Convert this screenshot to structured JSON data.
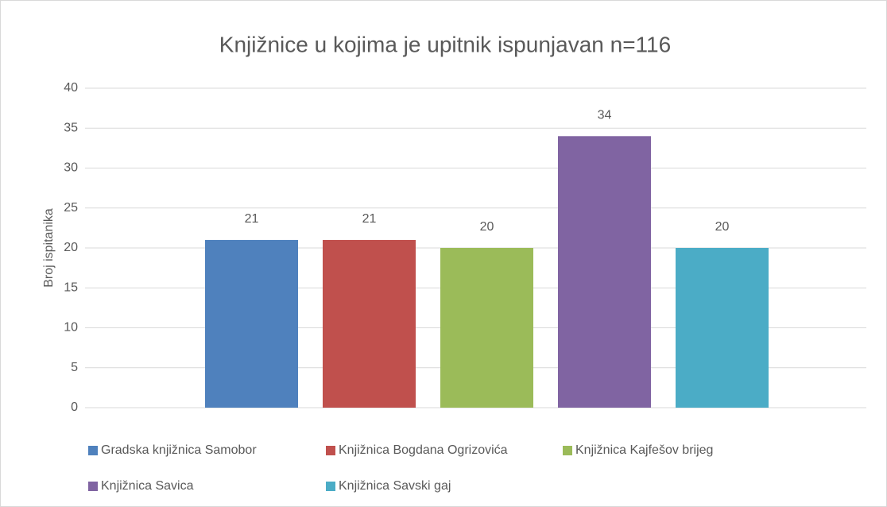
{
  "chart_data": {
    "type": "bar",
    "title": "Knjižnice u kojima je upitnik ispunjavan n=116",
    "y_label": "Broj ispitanika",
    "categories": [
      null
    ],
    "series": [
      {
        "name": "Gradska knjižnica Samobor",
        "color": "#4f81bd",
        "values": [
          21
        ]
      },
      {
        "name": "Knjižnica Bogdana Ogrizovića",
        "color": "#c0504d",
        "values": [
          21
        ]
      },
      {
        "name": "Knjižnica Kajfešov brijeg",
        "color": "#9bbb59",
        "values": [
          20
        ]
      },
      {
        "name": "Knjižnica Savica",
        "color": "#8064a2",
        "values": [
          34
        ]
      },
      {
        "name": "Knjižnica Savski gaj",
        "color": "#4bacc6",
        "values": [
          20
        ]
      }
    ],
    "ylim": [
      0,
      40
    ],
    "yticks": [
      0,
      5,
      10,
      15,
      20,
      25,
      30,
      35,
      40
    ],
    "grid": true,
    "legend": "bottom",
    "data_labels": true
  }
}
